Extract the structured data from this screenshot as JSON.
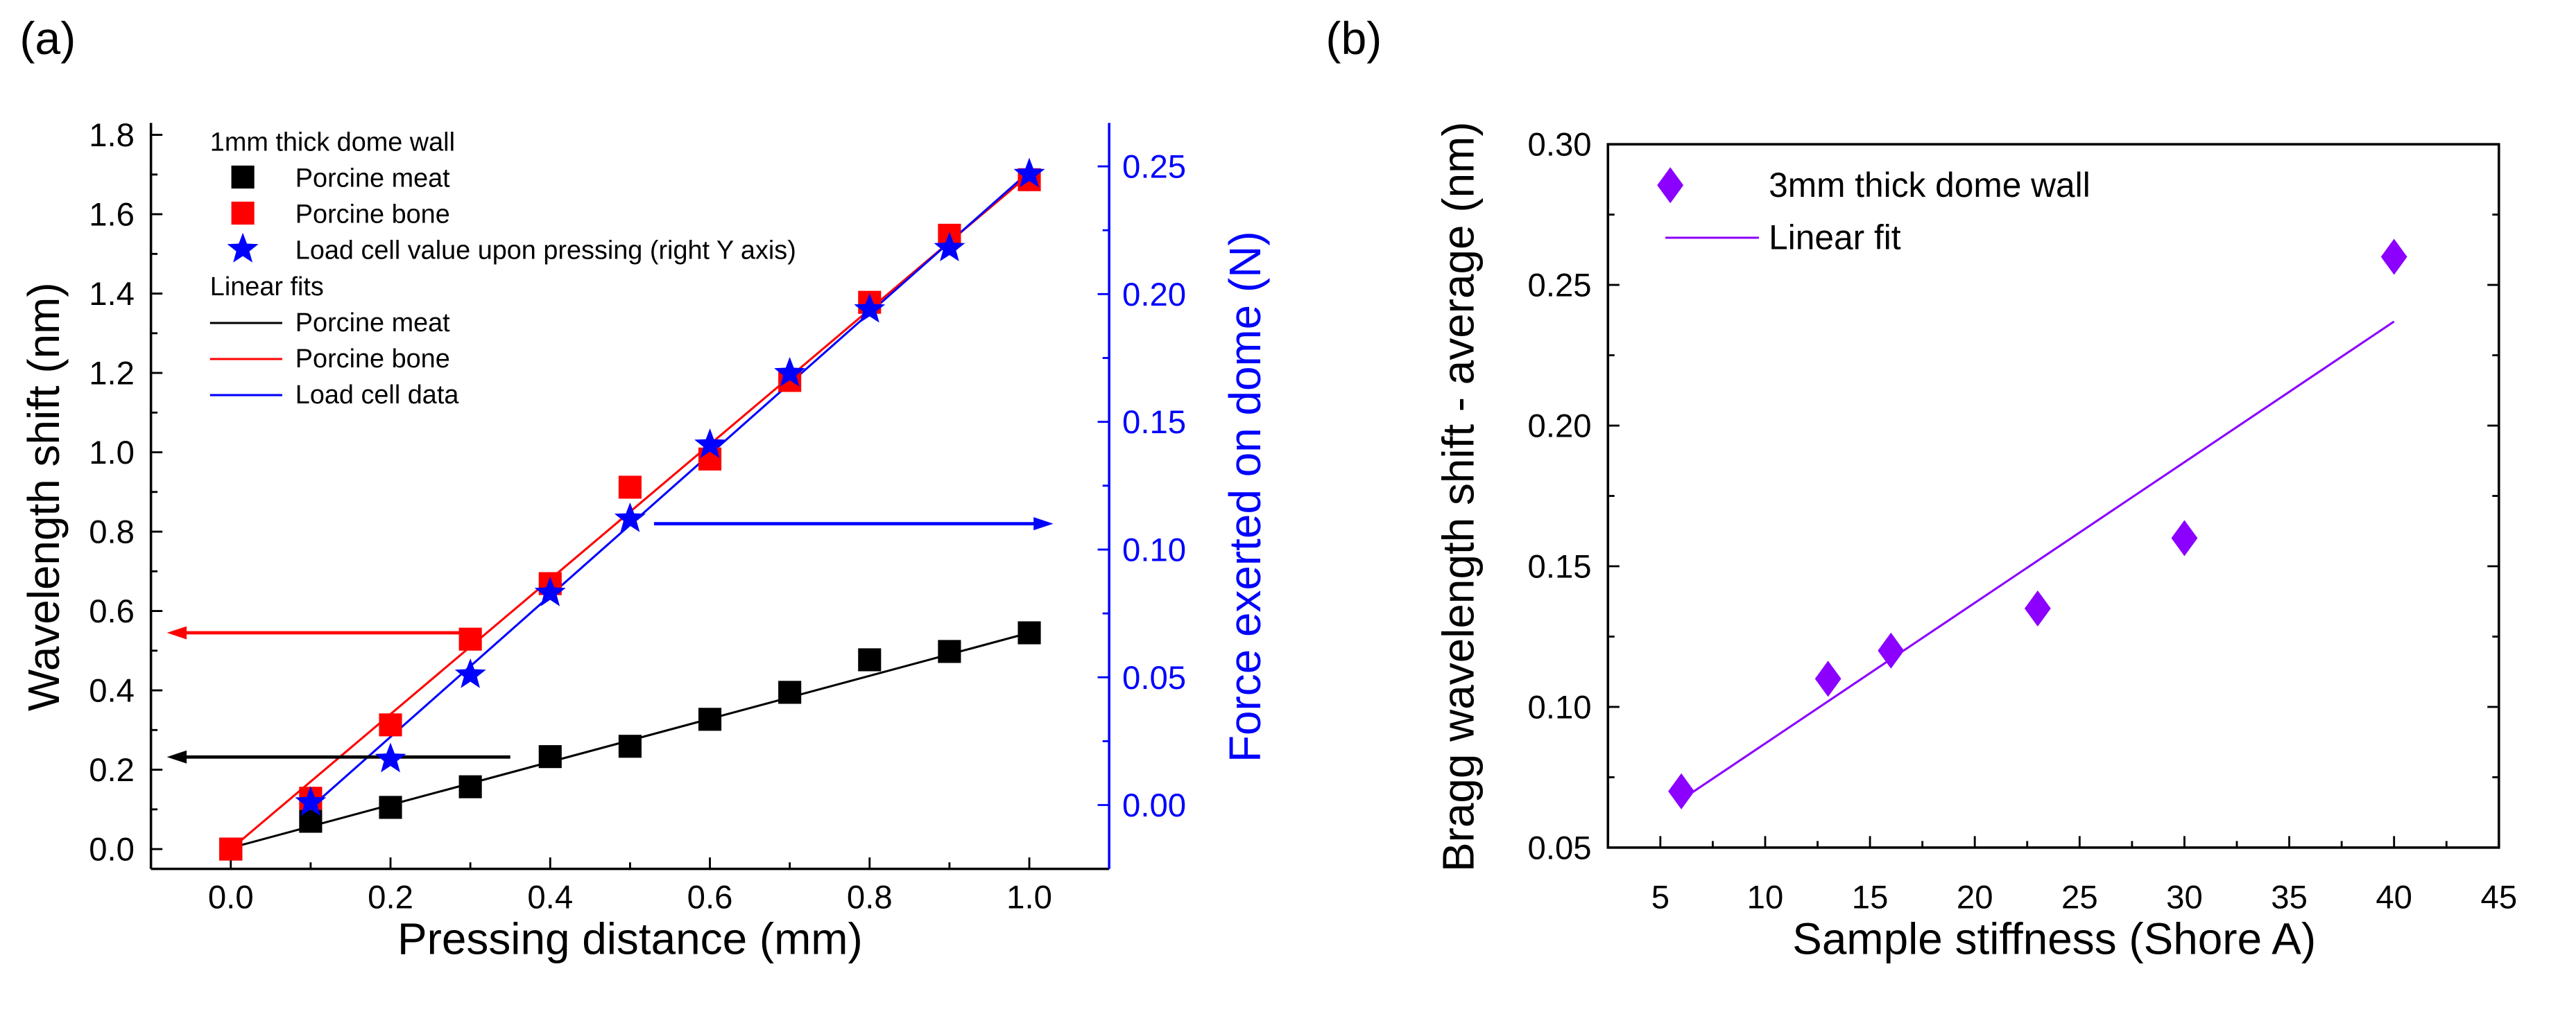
{
  "chart_data": [
    {
      "panel_label": "(a)",
      "type": "scatter",
      "xlabel": "Pressing distance (mm)",
      "ylabel": "Wavelength shift (nm)",
      "ylabel_right": "Force exerted on dome (N)",
      "xlim": [
        -0.1,
        1.1
      ],
      "ylim": [
        -0.05,
        1.83
      ],
      "ylim_right": [
        -0.025,
        0.267
      ],
      "xticks": [
        "0.0",
        "0.2",
        "0.4",
        "0.6",
        "0.8",
        "1.0"
      ],
      "yticks": [
        "0.0",
        "0.2",
        "0.4",
        "0.6",
        "0.8",
        "1.0",
        "1.2",
        "1.4",
        "1.6",
        "1.8"
      ],
      "yticks_right": [
        "0.00",
        "0.05",
        "0.10",
        "0.15",
        "0.20",
        "0.25"
      ],
      "legend_title": "1mm thick dome wall",
      "legend_fits_title": "Linear fits",
      "series": [
        {
          "name": "Porcine meat",
          "marker": "square",
          "color": "#000000",
          "axis": "left",
          "x": [
            0,
            0.1,
            0.2,
            0.3,
            0.4,
            0.5,
            0.6,
            0.7,
            0.8,
            0.9,
            1.0
          ],
          "y": [
            0,
            0.07,
            0.105,
            0.157,
            0.233,
            0.259,
            0.327,
            0.395,
            0.477,
            0.498,
            0.545
          ]
        },
        {
          "name": "Porcine bone",
          "marker": "square",
          "color": "#ff0000",
          "axis": "left",
          "x": [
            0,
            0.1,
            0.2,
            0.3,
            0.4,
            0.5,
            0.6,
            0.7,
            0.8,
            0.9,
            1.0
          ],
          "y": [
            0,
            0.128,
            0.313,
            0.529,
            0.669,
            0.912,
            0.983,
            1.181,
            1.378,
            1.547,
            1.687
          ]
        },
        {
          "name": "Load cell value upon pressing (right Y axis)",
          "marker": "star",
          "color": "#0000ff",
          "axis": "right",
          "x": [
            0.1,
            0.2,
            0.3,
            0.4,
            0.5,
            0.6,
            0.7,
            0.8,
            0.9,
            1.0
          ],
          "y": [
            0.001,
            0.018,
            0.051,
            0.083,
            0.112,
            0.141,
            0.169,
            0.194,
            0.218,
            0.247
          ]
        }
      ],
      "fits": [
        {
          "name": "Porcine meat",
          "color": "#000000",
          "axis": "left",
          "x": [
            0,
            1.0
          ],
          "y": [
            0.003,
            0.545
          ]
        },
        {
          "name": "Porcine bone",
          "color": "#ff0000",
          "axis": "left",
          "x": [
            0,
            1.0
          ],
          "y": [
            0.0,
            1.7
          ]
        },
        {
          "name": "Load cell data",
          "color": "#0000ff",
          "axis": "right",
          "x": [
            0.1,
            1.0
          ],
          "y": [
            -0.001,
            0.248
          ]
        }
      ],
      "arrows": [
        {
          "color": "#ff0000",
          "from": [
            0.3,
            0.545
          ],
          "to": [
            -0.08,
            0.545
          ],
          "meaning": "left axis"
        },
        {
          "color": "#000000",
          "from": [
            0.35,
            0.232
          ],
          "to": [
            -0.08,
            0.232
          ],
          "meaning": "left axis"
        },
        {
          "color": "#0000ff",
          "from": [
            0.53,
            0.82
          ],
          "to": [
            1.03,
            0.82
          ],
          "meaning": "right axis"
        }
      ],
      "axis_color_right": "#0000ff"
    },
    {
      "panel_label": "(b)",
      "type": "scatter",
      "xlabel": "Sample stiffness (Shore A)",
      "ylabel": "Bragg wavelength shift - average (nm)",
      "xlim": [
        2.5,
        45
      ],
      "ylim": [
        0.05,
        0.3
      ],
      "xticks": [
        "5",
        "10",
        "15",
        "20",
        "25",
        "30",
        "35",
        "40",
        "45"
      ],
      "yticks": [
        "0.05",
        "0.10",
        "0.15",
        "0.20",
        "0.25",
        "0.30"
      ],
      "series": [
        {
          "name": "3mm thick dome wall",
          "marker": "diamond",
          "color": "#8b00ff",
          "x": [
            6,
            13,
            16,
            23,
            30,
            40
          ],
          "y": [
            0.07,
            0.11,
            0.12,
            0.135,
            0.16,
            0.26
          ]
        }
      ],
      "fits": [
        {
          "name": "Linear fit",
          "color": "#8b00ff",
          "x": [
            6,
            40
          ],
          "y": [
            0.067,
            0.237
          ]
        }
      ]
    }
  ]
}
